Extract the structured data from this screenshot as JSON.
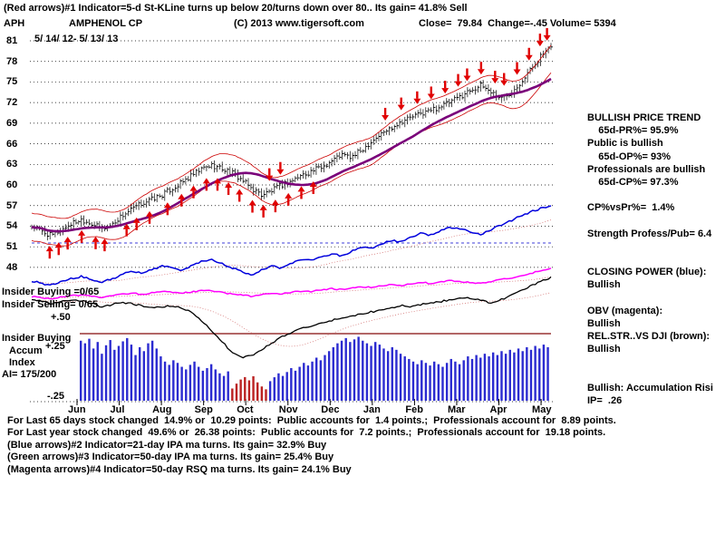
{
  "header": {
    "indicator_line": "(Red arrows)#1 Indicator=5-d St-KLine turns up below 20/turns down over 80.. Its gain= 41.8% Sell",
    "symbol": "APH",
    "company": "AMPHENOL CP",
    "copyright": "(C) 2013 www.tigersoft.com",
    "quote": "Close=  79.84  Change=-.45 Volume= 5394",
    "date_range": "5/ 14/ 12- 5/ 13/ 13"
  },
  "left_labels": {
    "insider_buying_ratio": "Insider Buying =0/65",
    "insider_selling_ratio": "Insider Selling= 0/65",
    "plus50": "+.50",
    "insider_buying": "Insider Buying",
    "accum": "Accum",
    "index": "Index",
    "ai": "AI= 175/200",
    "plus25": "+.25",
    "minus25": "-.25"
  },
  "analysis_panel": {
    "lines": [
      "BULLISH PRICE TREND",
      "    65d-PR%= 95.9%",
      "Public is bullish",
      "    65d-OP%= 93%",
      "Professionals are bullish",
      "    65d-CP%= 97.3%",
      "",
      "CP%vsPr%=  1.4%",
      "",
      "Strength Profess/Pub= 6.4",
      "",
      "",
      "CLOSING POWER (blue):",
      "Bullish",
      "",
      "OBV (magenta):",
      "Bullish",
      "REL.STR..VS DJI (brown):",
      "Bullish",
      "",
      "",
      "Bullish: Accumulation Risi",
      "IP=  .26"
    ]
  },
  "footer": {
    "lines": [
      " For Last 65 days stock changed  14.9% or  10.29 points:  Public accounts for  1.4 points.;  Professionals account for  8.89 points.",
      " For Last year stock changed  49.6% or  26.38 points:  Public accounts for  7.2 points.;  Professionals account for  19.18 points.",
      " (Blue arrows)#2 Indicator=21-day IPA ma turns. Its gain= 32.9% Buy",
      " (Green arrows)#3 Indicator=50-day IPA ma turns. Its gain= 25.4% Buy",
      " (Magenta arrows)#4 Indicator=50-day RSQ ma turns. Its gain= 24.1% Buy"
    ]
  },
  "chart_data": {
    "type": "line",
    "title": "APH AMPHENOL CP daily chart with TigerSoft indicators",
    "date_range": "5/14/12 - 5/13/13",
    "months": [
      "Jun",
      "Jul",
      "Aug",
      "Sep",
      "Oct",
      "Nov",
      "Dec",
      "Jan",
      "Feb",
      "Mar",
      "Apr",
      "May"
    ],
    "price_ticks": [
      81,
      78,
      75,
      72,
      69,
      66,
      63,
      60,
      57,
      54,
      51,
      48
    ],
    "price_ylim": [
      48,
      81
    ],
    "close": 79.84,
    "change": -0.45,
    "volume": 5394,
    "series": [
      {
        "name": "price_weekly_close",
        "color": "#000000",
        "values": [
          54.0,
          53.2,
          52.6,
          53.5,
          54.4,
          55.0,
          54.4,
          53.6,
          54.2,
          55.5,
          56.4,
          57.3,
          57.9,
          58.5,
          59.4,
          60.3,
          61.3,
          62.3,
          62.9,
          62.4,
          61.8,
          60.8,
          59.5,
          58.6,
          59.1,
          60.0,
          60.6,
          61.4,
          62.0,
          62.6,
          63.5,
          64.4,
          64.0,
          65.0,
          66.4,
          67.4,
          68.4,
          69.3,
          69.9,
          70.4,
          70.9,
          71.5,
          72.1,
          73.0,
          73.9,
          74.5,
          73.6,
          72.6,
          73.5,
          75.1,
          76.9,
          78.8,
          79.84
        ]
      },
      {
        "name": "closing_power",
        "color": "#0000dd",
        "values": [
          0.13,
          0.1,
          0.08,
          0.12,
          0.16,
          0.18,
          0.14,
          0.11,
          0.15,
          0.2,
          0.24,
          0.22,
          0.26,
          0.3,
          0.28,
          0.25,
          0.3,
          0.35,
          0.38,
          0.33,
          0.28,
          0.24,
          0.2,
          0.25,
          0.3,
          0.28,
          0.33,
          0.38,
          0.36,
          0.4,
          0.44,
          0.42,
          0.47,
          0.52,
          0.5,
          0.55,
          0.6,
          0.58,
          0.63,
          0.68,
          0.66,
          0.71,
          0.75,
          0.73,
          0.7,
          0.67,
          0.72,
          0.78,
          0.83,
          0.88,
          0.93,
          0.97,
          1.0
        ]
      },
      {
        "name": "obv",
        "color": "#ff00ff",
        "values": [
          0.4,
          0.38,
          0.36,
          0.39,
          0.42,
          0.44,
          0.41,
          0.38,
          0.41,
          0.45,
          0.47,
          0.45,
          0.48,
          0.51,
          0.49,
          0.47,
          0.5,
          0.53,
          0.52,
          0.49,
          0.46,
          0.43,
          0.41,
          0.44,
          0.48,
          0.46,
          0.49,
          0.52,
          0.51,
          0.54,
          0.57,
          0.55,
          0.58,
          0.61,
          0.6,
          0.63,
          0.66,
          0.64,
          0.67,
          0.7,
          0.68,
          0.71,
          0.74,
          0.72,
          0.7,
          0.68,
          0.72,
          0.76,
          0.8,
          0.85,
          0.9,
          0.95,
          1.0
        ]
      },
      {
        "name": "rel_str_vs_dji",
        "color": "#000000",
        "values": [
          0.78,
          0.76,
          0.74,
          0.76,
          0.78,
          0.77,
          0.74,
          0.71,
          0.73,
          0.75,
          0.74,
          0.72,
          0.7,
          0.71,
          0.72,
          0.7,
          0.66,
          0.58,
          0.48,
          0.38,
          0.28,
          0.22,
          0.24,
          0.3,
          0.36,
          0.42,
          0.46,
          0.5,
          0.53,
          0.56,
          0.58,
          0.6,
          0.62,
          0.64,
          0.66,
          0.68,
          0.7,
          0.72,
          0.71,
          0.73,
          0.75,
          0.76,
          0.78,
          0.8,
          0.79,
          0.77,
          0.75,
          0.78,
          0.82,
          0.86,
          0.91,
          0.96,
          0.99
        ]
      }
    ],
    "ma_color": "#7a007a",
    "band_color": "#cc0000",
    "accum_index_bars": {
      "pos_color": "#2b2bd0",
      "neg_color": "#bb2222",
      "values": [
        0.92,
        0.88,
        0.95,
        0.8,
        0.9,
        0.72,
        0.85,
        0.93,
        0.78,
        0.84,
        0.91,
        0.96,
        0.86,
        0.7,
        0.82,
        0.76,
        0.88,
        0.92,
        0.8,
        0.68,
        0.6,
        0.55,
        0.62,
        0.58,
        0.52,
        0.48,
        0.55,
        0.6,
        0.52,
        0.46,
        0.5,
        0.56,
        0.48,
        0.42,
        0.38,
        0.45,
        -0.3,
        -0.42,
        -0.52,
        -0.58,
        -0.5,
        -0.6,
        -0.45,
        -0.35,
        -0.28,
        0.3,
        0.36,
        0.42,
        0.38,
        0.44,
        0.5,
        0.46,
        0.52,
        0.58,
        0.54,
        0.6,
        0.66,
        0.62,
        0.7,
        0.76,
        0.82,
        0.88,
        0.92,
        0.96,
        0.9,
        0.94,
        0.98,
        0.92,
        0.88,
        0.84,
        0.9,
        0.86,
        0.8,
        0.76,
        0.82,
        0.78,
        0.72,
        0.68,
        0.64,
        0.6,
        0.56,
        0.62,
        0.58,
        0.54,
        0.6,
        0.56,
        0.52,
        0.58,
        0.64,
        0.6,
        0.56,
        0.62,
        0.68,
        0.64,
        0.7,
        0.66,
        0.72,
        0.68,
        0.74,
        0.7,
        0.76,
        0.72,
        0.78,
        0.74,
        0.8,
        0.76,
        0.82,
        0.78,
        0.84,
        0.8,
        0.86,
        0.82
      ]
    },
    "arrows": {
      "color": "#e00000",
      "up_weeks": [
        1.8,
        2.7,
        3.6,
        5,
        6.4,
        7.3,
        9.5,
        10.5,
        11.8,
        13.6,
        15,
        16.2,
        17.5,
        18.6,
        19.7,
        20.8,
        22.1,
        23.2,
        24.4,
        25.7,
        27,
        28.2
      ],
      "down_weeks": [
        23.8,
        24.9,
        35.4,
        37,
        38.6,
        40,
        41.4,
        42.7,
        43.6,
        45,
        46.4,
        47.3,
        48.6,
        49.8,
        50.9,
        51.6
      ]
    }
  }
}
